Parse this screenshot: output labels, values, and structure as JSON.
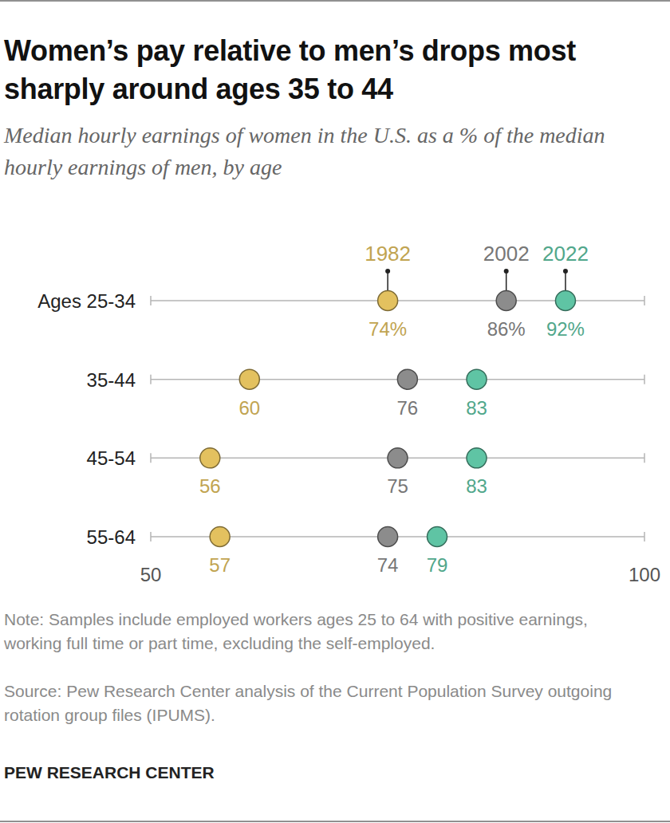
{
  "chart_data": {
    "type": "dot",
    "title": "Women’s pay relative to men’s drops most sharply around ages 35 to 44",
    "subtitle": "Median hourly earnings of women in the U.S. as a % of the median hourly earnings of men, by age",
    "categories": [
      "Ages 25-34",
      "35-44",
      "45-54",
      "55-64"
    ],
    "series": [
      {
        "name": "1982",
        "color": "#e3c15f",
        "values": [
          74,
          60,
          56,
          57
        ],
        "value_labels": [
          "74%",
          "60",
          "56",
          "57"
        ]
      },
      {
        "name": "2002",
        "color": "#8c8c8c",
        "values": [
          86,
          76,
          75,
          74
        ],
        "value_labels": [
          "86%",
          "76",
          "75",
          "74"
        ]
      },
      {
        "name": "2022",
        "color": "#5fc4a4",
        "values": [
          92,
          83,
          83,
          79
        ],
        "value_labels": [
          "92%",
          "83",
          "83",
          "79"
        ]
      }
    ],
    "xlim": [
      50,
      100
    ],
    "xticks": [
      50,
      100
    ],
    "data_labels": true,
    "note": "Note: Samples include employed workers ages 25 to 64 with positive earnings, working full time or part time, excluding the self-employed.",
    "source": "Source: Pew Research Center analysis of the Current Population Survey outgoing rotation group files (IPUMS).",
    "credit": "PEW RESEARCH CENTER"
  }
}
